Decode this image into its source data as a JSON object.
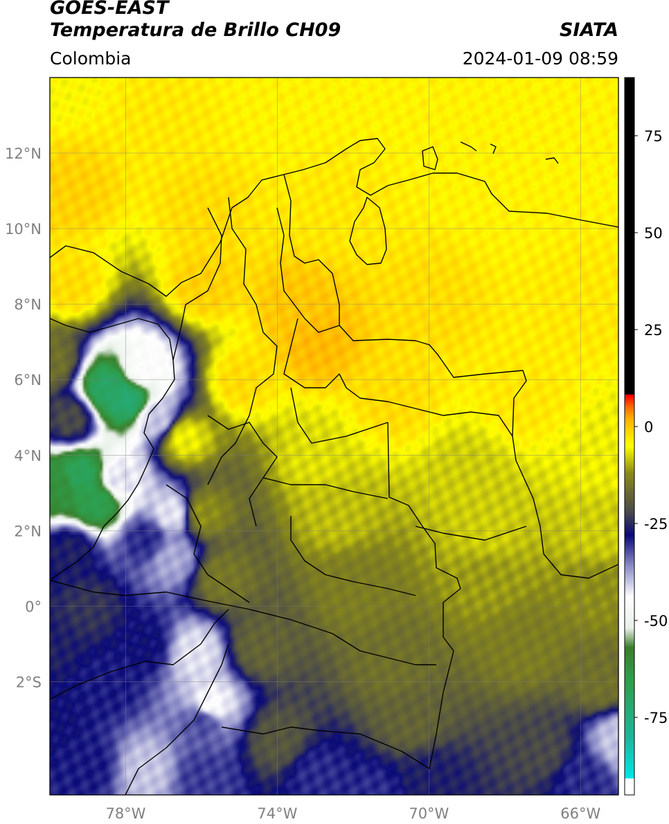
{
  "header": {
    "satellite": "GOES-EAST",
    "product": "Temperatura de Brillo CH09",
    "source": "SIATA",
    "region": "Colombia",
    "datetime": "2024-01-09 08:59"
  },
  "map": {
    "lon_range": [
      -80.0,
      -65.0
    ],
    "lat_range": [
      -5.0,
      14.0
    ],
    "gridlines": true,
    "lon_ticks": [
      {
        "value": -78,
        "label": "78°W"
      },
      {
        "value": -74,
        "label": "74°W"
      },
      {
        "value": -70,
        "label": "70°W"
      },
      {
        "value": -66,
        "label": "66°W"
      }
    ],
    "lat_ticks": [
      {
        "value": 12,
        "label": "12°N"
      },
      {
        "value": 10,
        "label": "10°N"
      },
      {
        "value": 8,
        "label": "8°N"
      },
      {
        "value": 6,
        "label": "6°N"
      },
      {
        "value": 4,
        "label": "4°N"
      },
      {
        "value": 2,
        "label": "2°N"
      },
      {
        "value": 0,
        "label": "0°"
      },
      {
        "value": -2,
        "label": "2°S"
      }
    ]
  },
  "colorbar": {
    "range": [
      -95,
      90
    ],
    "ticks": [
      {
        "value": 75,
        "label": "75"
      },
      {
        "value": 50,
        "label": "50"
      },
      {
        "value": 25,
        "label": "25"
      },
      {
        "value": 0,
        "label": "0"
      },
      {
        "value": -25,
        "label": "-25"
      },
      {
        "value": -50,
        "label": "-50"
      },
      {
        "value": -75,
        "label": "-75"
      }
    ],
    "stops": [
      {
        "value": -95,
        "color": "#ffffff"
      },
      {
        "value": -91,
        "color": "#ffffff"
      },
      {
        "value": -90.5,
        "color": "#00e5e5"
      },
      {
        "value": -80,
        "color": "#1fb59a"
      },
      {
        "value": -65,
        "color": "#2f9d4a"
      },
      {
        "value": -57,
        "color": "#3a7d2a"
      },
      {
        "value": -52,
        "color": "#e8f0e8"
      },
      {
        "value": -44,
        "color": "#ffffff"
      },
      {
        "value": -36,
        "color": "#8c8cc8"
      },
      {
        "value": -28,
        "color": "#0a0a78"
      },
      {
        "value": -22,
        "color": "#4a4a4a"
      },
      {
        "value": -12,
        "color": "#8a8a1a"
      },
      {
        "value": -5,
        "color": "#ffff00"
      },
      {
        "value": 2,
        "color": "#ffb000"
      },
      {
        "value": 5,
        "color": "#ff6a00"
      },
      {
        "value": 8,
        "color": "#ff0000"
      },
      {
        "value": 8.5,
        "color": "#000000"
      },
      {
        "value": 90,
        "color": "#000000"
      }
    ]
  },
  "field": [
    {
      "lon": -80.0,
      "lat": 14.0,
      "temp": -5
    },
    {
      "lon": -77.0,
      "lat": 13.0,
      "temp": -3
    },
    {
      "lon": -74.0,
      "lat": 13.5,
      "temp": -4
    },
    {
      "lon": -70.0,
      "lat": 13.5,
      "temp": -4
    },
    {
      "lon": -66.0,
      "lat": 13.5,
      "temp": -4
    },
    {
      "lon": -79.5,
      "lat": 11.0,
      "temp": -1
    },
    {
      "lon": -76.0,
      "lat": 10.5,
      "temp": -2
    },
    {
      "lon": -72.5,
      "lat": 10.5,
      "temp": -3
    },
    {
      "lon": -68.0,
      "lat": 11.0,
      "temp": -4
    },
    {
      "lon": -79.5,
      "lat": 8.5,
      "temp": -2
    },
    {
      "lon": -76.0,
      "lat": 8.5,
      "temp": -1
    },
    {
      "lon": -73.0,
      "lat": 7.0,
      "temp": 1
    },
    {
      "lon": -73.5,
      "lat": 8.0,
      "temp": 0
    },
    {
      "lon": -70.0,
      "lat": 8.0,
      "temp": -2
    },
    {
      "lon": -66.0,
      "lat": 8.0,
      "temp": -3
    },
    {
      "lon": -75.0,
      "lat": 6.0,
      "temp": -2
    },
    {
      "lon": -71.0,
      "lat": 5.5,
      "temp": -2
    },
    {
      "lon": -67.5,
      "lat": 5.5,
      "temp": -3
    },
    {
      "lon": -76.5,
      "lat": 4.5,
      "temp": -6
    },
    {
      "lon": -73.0,
      "lat": 4.0,
      "temp": -7
    },
    {
      "lon": -69.0,
      "lat": 3.5,
      "temp": -8
    },
    {
      "lon": -65.5,
      "lat": 4.0,
      "temp": -6
    },
    {
      "lon": -76.0,
      "lat": 2.5,
      "temp": -12
    },
    {
      "lon": -72.5,
      "lat": 2.5,
      "temp": -9
    },
    {
      "lon": -68.5,
      "lat": 2.0,
      "temp": -8
    },
    {
      "lon": -65.5,
      "lat": 2.0,
      "temp": -8
    },
    {
      "lon": -75.5,
      "lat": 0.8,
      "temp": -15
    },
    {
      "lon": -72.0,
      "lat": 0.5,
      "temp": -14
    },
    {
      "lon": -68.5,
      "lat": 0.8,
      "temp": -11
    },
    {
      "lon": -65.5,
      "lat": 0.5,
      "temp": -12
    },
    {
      "lon": -74.5,
      "lat": -1.0,
      "temp": -18
    },
    {
      "lon": -71.0,
      "lat": -1.5,
      "temp": -16
    },
    {
      "lon": -67.5,
      "lat": -1.0,
      "temp": -14
    },
    {
      "lon": -65.5,
      "lat": -2.0,
      "temp": -16
    },
    {
      "lon": -74.0,
      "lat": -3.5,
      "temp": -20
    },
    {
      "lon": -70.5,
      "lat": -3.0,
      "temp": -18
    },
    {
      "lon": -67.0,
      "lat": -3.8,
      "temp": -22
    },
    {
      "lon": -66.0,
      "lat": -4.5,
      "temp": -30
    },
    {
      "lon": -80.0,
      "lat": 6.5,
      "temp": -16
    },
    {
      "lon": -79.5,
      "lat": 5.0,
      "temp": -22
    },
    {
      "lon": -78.5,
      "lat": 5.8,
      "temp": -70
    },
    {
      "lon": -78.0,
      "lat": 5.5,
      "temp": -72
    },
    {
      "lon": -77.6,
      "lat": 6.3,
      "temp": -45
    },
    {
      "lon": -77.2,
      "lat": 5.0,
      "temp": -40
    },
    {
      "lon": -79.2,
      "lat": 3.5,
      "temp": -68
    },
    {
      "lon": -79.8,
      "lat": 3.2,
      "temp": -62
    },
    {
      "lon": -78.8,
      "lat": 2.8,
      "temp": -66
    },
    {
      "lon": -78.2,
      "lat": 3.4,
      "temp": -42
    },
    {
      "lon": -76.8,
      "lat": 2.5,
      "temp": -42
    },
    {
      "lon": -76.8,
      "lat": 1.3,
      "temp": -38
    },
    {
      "lon": -77.5,
      "lat": 1.8,
      "temp": -30
    },
    {
      "lon": -79.5,
      "lat": 1.5,
      "temp": -26
    },
    {
      "lon": -79.0,
      "lat": 0.0,
      "temp": -24
    },
    {
      "lon": -77.5,
      "lat": -1.0,
      "temp": -28
    },
    {
      "lon": -76.0,
      "lat": -3.0,
      "temp": -32
    },
    {
      "lon": -78.5,
      "lat": -2.0,
      "temp": -29
    },
    {
      "lon": -79.0,
      "lat": -4.2,
      "temp": -29
    },
    {
      "lon": -77.5,
      "lat": -4.3,
      "temp": -40
    },
    {
      "lon": -76.0,
      "lat": -4.5,
      "temp": -31
    },
    {
      "lon": -73.0,
      "lat": -4.4,
      "temp": -30
    },
    {
      "lon": -70.0,
      "lat": -4.5,
      "temp": -26
    },
    {
      "lon": -75.8,
      "lat": -2.6,
      "temp": -44
    },
    {
      "lon": -76.2,
      "lat": -1.2,
      "temp": -42
    },
    {
      "lon": -80.0,
      "lat": -1.0,
      "temp": -26
    },
    {
      "lon": -80.0,
      "lat": -3.0,
      "temp": -28
    },
    {
      "lon": -65.0,
      "lat": -3.5,
      "temp": -40
    },
    {
      "lon": -71.5,
      "lat": -5.0,
      "temp": -30
    }
  ]
}
